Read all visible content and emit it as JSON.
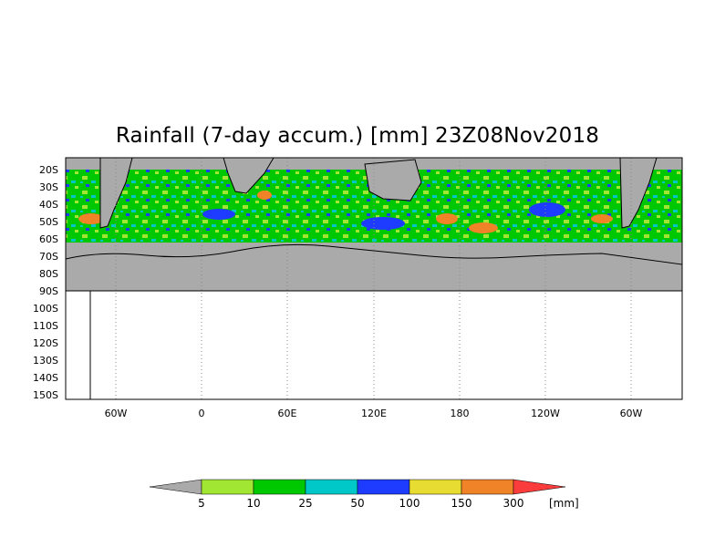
{
  "title": "Rainfall (7-day accum.) [mm] 23Z08Nov2018",
  "map": {
    "lat_labels": [
      "20S",
      "30S",
      "40S",
      "50S",
      "60S",
      "70S",
      "80S",
      "90S",
      "100S",
      "110S",
      "120S",
      "130S",
      "140S",
      "150S"
    ],
    "lon_labels": [
      "60W",
      "0",
      "60E",
      "120E",
      "180",
      "120W",
      "60W"
    ],
    "land_color": "#aaaaaa",
    "ocean_background": "#ffffff"
  },
  "colorbar": {
    "unit": "[mm]",
    "levels": [
      "5",
      "10",
      "25",
      "50",
      "100",
      "150",
      "300"
    ],
    "colors": [
      "#aaaaaa",
      "#a0e632",
      "#00c800",
      "#00c8c8",
      "#1e3cff",
      "#e6dc32",
      "#f08228",
      "#fa3c3c"
    ]
  }
}
